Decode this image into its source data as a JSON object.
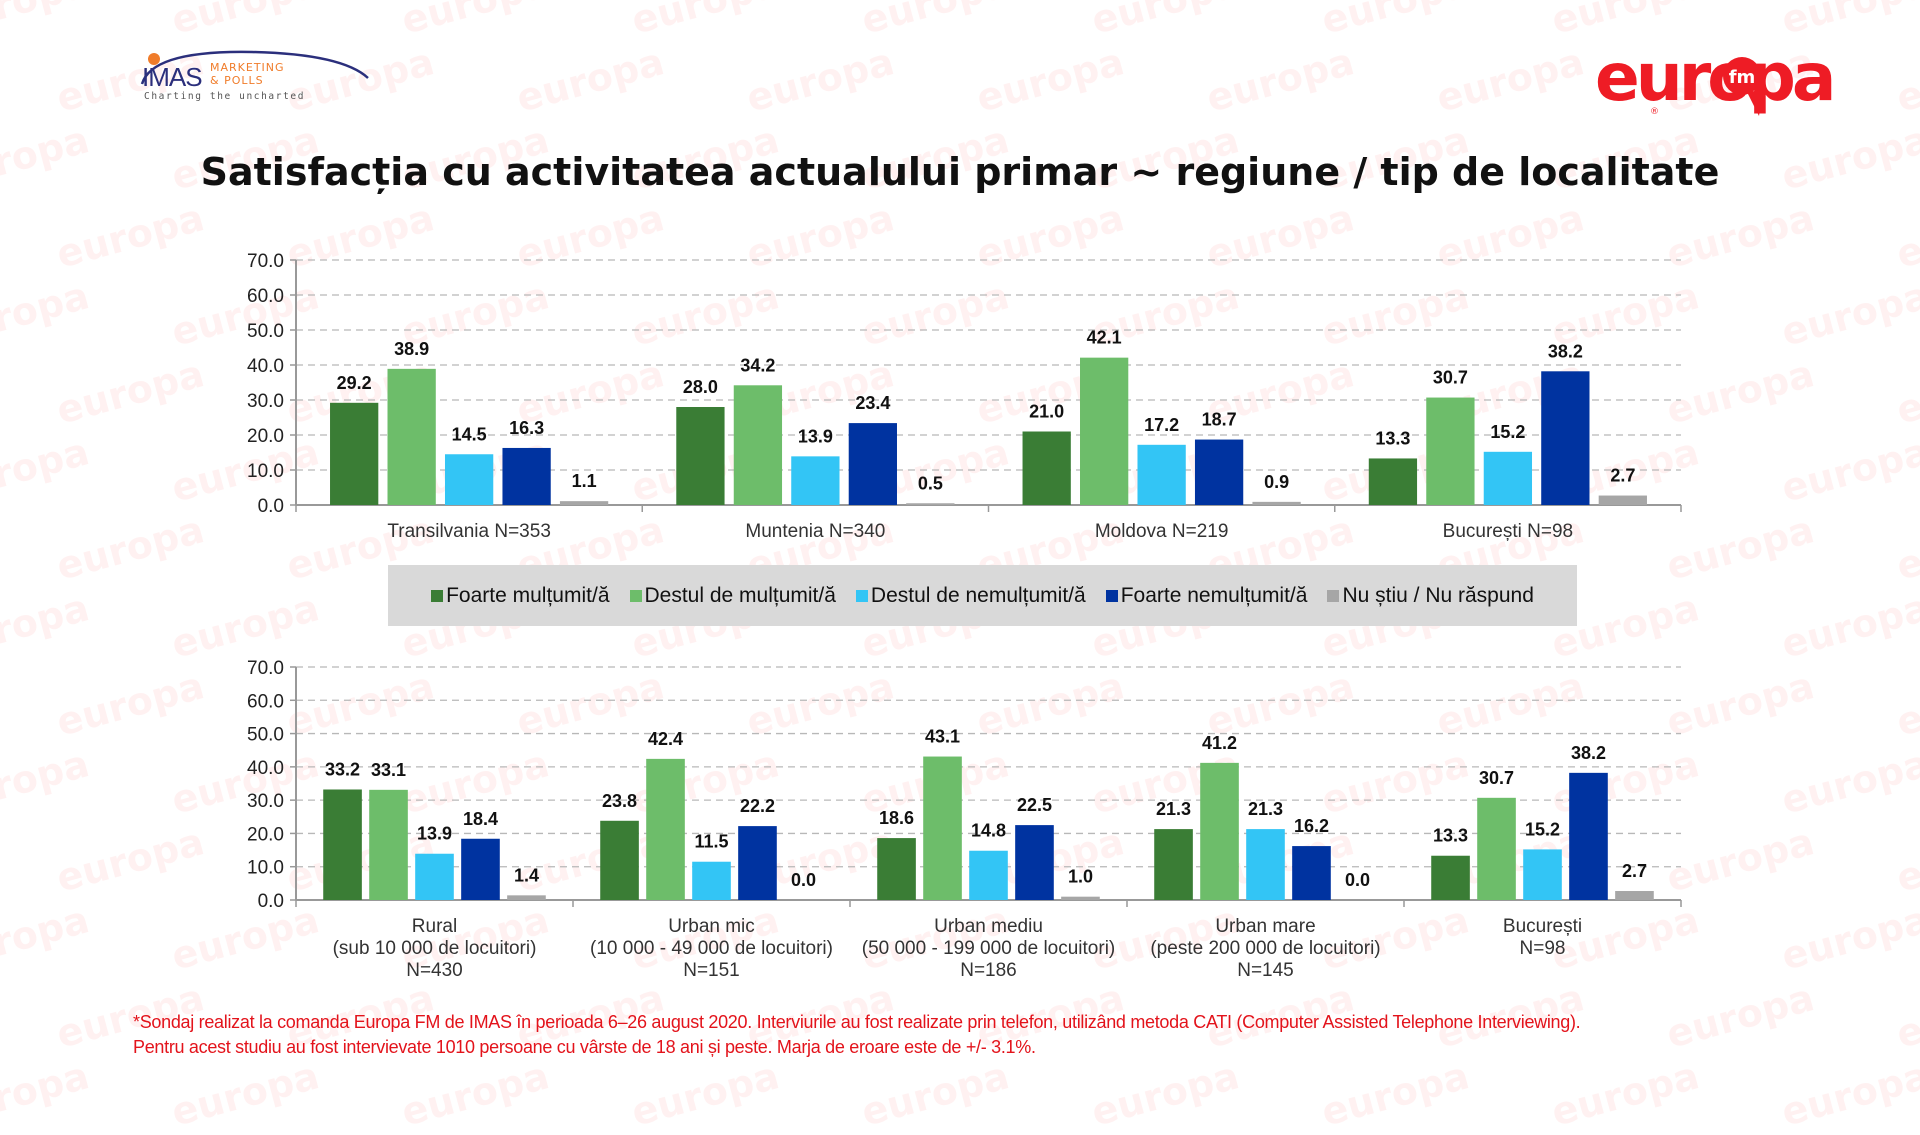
{
  "header": {
    "imas_logo": {
      "main": "IMAS",
      "line1": "MARKETING",
      "line2": "& POLLS",
      "tagline": "Charting the uncharted"
    },
    "europa_logo": {
      "main": "europa",
      "badge": "fm",
      "registered": "®"
    },
    "watermark_text": "europa"
  },
  "title": "Satisfacția cu activitatea actualului primar ~ regiune / tip de localitate",
  "colors": {
    "foarte_multumit": "#3a7d35",
    "destul_multumit": "#6dbd6a",
    "destul_nemultumit": "#33c5f5",
    "foarte_nemultumit": "#0033a0",
    "nu_stiu": "#a6a6a6",
    "footnote": "#e3131b",
    "brand_red": "#ee1c25",
    "imas_blue": "#2b2f7c",
    "imas_orange": "#f07c2a"
  },
  "legend": [
    {
      "label": "Foarte mulțumit/ă",
      "color": "#3a7d35"
    },
    {
      "label": "Destul de mulțumit/ă",
      "color": "#6dbd6a"
    },
    {
      "label": "Destul de nemulțumit/ă",
      "color": "#33c5f5"
    },
    {
      "label": "Foarte nemulțumit/ă",
      "color": "#0033a0"
    },
    {
      "label": "Nu știu / Nu răspund",
      "color": "#a6a6a6"
    }
  ],
  "chart_data": [
    {
      "type": "bar",
      "title": "Regiune",
      "xlabel": "",
      "ylabel": "",
      "ylim": [
        0,
        70
      ],
      "yticks": [
        "0.0",
        "10.0",
        "20.0",
        "30.0",
        "40.0",
        "50.0",
        "60.0",
        "70.0"
      ],
      "grid": true,
      "legend_position": "bottom",
      "categories": [
        [
          "Transilvania N=353"
        ],
        [
          "Muntenia N=340"
        ],
        [
          "Moldova N=219"
        ],
        [
          "București N=98"
        ]
      ],
      "series": [
        {
          "name": "Foarte mulțumit/ă",
          "values": [
            29.2,
            28.0,
            21.0,
            13.3
          ]
        },
        {
          "name": "Destul de mulțumit/ă",
          "values": [
            38.9,
            34.2,
            42.1,
            30.7
          ]
        },
        {
          "name": "Destul de nemulțumit/ă",
          "values": [
            14.5,
            13.9,
            17.2,
            15.2
          ]
        },
        {
          "name": "Foarte nemulțumit/ă",
          "values": [
            16.3,
            23.4,
            18.7,
            38.2
          ]
        },
        {
          "name": "Nu știu / Nu răspund",
          "values": [
            1.1,
            0.5,
            0.9,
            2.7
          ]
        }
      ]
    },
    {
      "type": "bar",
      "title": "Tip de localitate",
      "xlabel": "",
      "ylabel": "",
      "ylim": [
        0,
        70
      ],
      "yticks": [
        "0.0",
        "10.0",
        "20.0",
        "30.0",
        "40.0",
        "50.0",
        "60.0",
        "70.0"
      ],
      "grid": true,
      "legend_position": "top",
      "categories": [
        [
          "Rural",
          "(sub 10 000 de locuitori)",
          "N=430"
        ],
        [
          "Urban mic",
          "(10 000 - 49 000 de locuitori)",
          "N=151"
        ],
        [
          "Urban mediu",
          "(50 000 - 199 000 de locuitori)",
          "N=186"
        ],
        [
          "Urban mare",
          "(peste 200 000 de locuitori)",
          "N=145"
        ],
        [
          "București",
          "N=98"
        ]
      ],
      "series": [
        {
          "name": "Foarte mulțumit/ă",
          "values": [
            33.2,
            23.8,
            18.6,
            21.3,
            13.3
          ]
        },
        {
          "name": "Destul de mulțumit/ă",
          "values": [
            33.1,
            42.4,
            43.1,
            41.2,
            30.7
          ]
        },
        {
          "name": "Destul de nemulțumit/ă",
          "values": [
            13.9,
            11.5,
            14.8,
            21.3,
            15.2
          ]
        },
        {
          "name": "Foarte nemulțumit/ă",
          "values": [
            18.4,
            22.2,
            22.5,
            16.2,
            38.2
          ]
        },
        {
          "name": "Nu știu / Nu răspund",
          "values": [
            1.4,
            0.0,
            1.0,
            0.0,
            2.7
          ]
        }
      ]
    }
  ],
  "footnote": {
    "line1": "*Sondaj realizat la comanda Europa FM de IMAS în perioada  6–26 august 2020. Interviurile au fost realizate prin telefon, utilizând metoda CATI (Computer Assisted Telephone Interviewing).",
    "line2": "Pentru acest studiu au fost intervievate 1010 persoane cu vârste de 18 ani și peste. Marja de eroare este de +/- 3.1%."
  }
}
